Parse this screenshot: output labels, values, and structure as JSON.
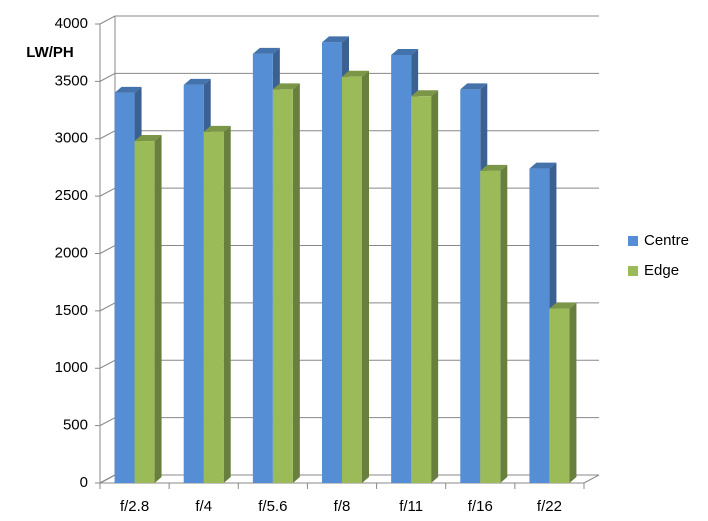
{
  "chart_data": {
    "type": "bar3d",
    "ylabel": "LW/PH",
    "categories": [
      "f/2.8",
      "f/4",
      "f/5.6",
      "f/8",
      "f/11",
      "f/16",
      "f/22"
    ],
    "series": [
      {
        "name": "Centre",
        "color": "#558ed5",
        "values": [
          3400,
          3470,
          3740,
          3840,
          3730,
          3430,
          2740
        ]
      },
      {
        "name": "Edge",
        "color": "#9bbb59",
        "values": [
          2980,
          3060,
          3430,
          3540,
          3370,
          2720,
          1520
        ]
      }
    ],
    "ylim": [
      0,
      4000
    ],
    "yticks": [
      0,
      500,
      1000,
      1500,
      2000,
      2500,
      3000,
      3500,
      4000
    ],
    "grid": true,
    "legend": "right"
  }
}
